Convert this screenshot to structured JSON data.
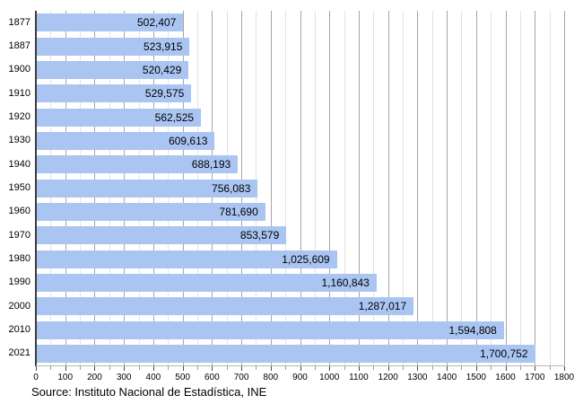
{
  "chart_data": {
    "type": "bar",
    "orientation": "horizontal",
    "title": "",
    "xlabel": "",
    "ylabel": "",
    "categories": [
      "1877",
      "1887",
      "1900",
      "1910",
      "1920",
      "1930",
      "1940",
      "1950",
      "1960",
      "1970",
      "1980",
      "1990",
      "2000",
      "2010",
      "2021"
    ],
    "values": [
      502407,
      523915,
      520429,
      529575,
      562525,
      609613,
      688193,
      756083,
      781690,
      853579,
      1025609,
      1160843,
      1287017,
      1594808,
      1700752
    ],
    "value_labels": [
      "502,407",
      "523,915",
      "520,429",
      "529,575",
      "562,525",
      "609,613",
      "688,193",
      "756,083",
      "781,690",
      "853,579",
      "1,025,609",
      "1,160,843",
      "1,287,017",
      "1,594,808",
      "1,700,752"
    ],
    "x_axis": {
      "min": 0,
      "max": 1800,
      "tick_label_step": 100,
      "minor_step": 50,
      "tick_labels": [
        "0",
        "100",
        "200",
        "300",
        "400",
        "500",
        "600",
        "700",
        "800",
        "900",
        "1000",
        "1100",
        "1200",
        "1300",
        "1400",
        "1500",
        "1600",
        "1700",
        "1800"
      ],
      "axis_value_scale": 1000
    },
    "grid": true,
    "legend": false,
    "colors": {
      "bar_fill": "#aac5f2",
      "major_gridline": "#a6a6a6",
      "minor_gridline": "#e3e3e3",
      "y_axis_line": "#3c3c3c",
      "x_axis_line": "#b8b8b8",
      "major_tick": "#4a4a4a",
      "minor_tick": "#9a9a9a",
      "text": "#000000"
    }
  },
  "source": {
    "text": "Source: Instituto Nacional de Estadística, INE"
  }
}
